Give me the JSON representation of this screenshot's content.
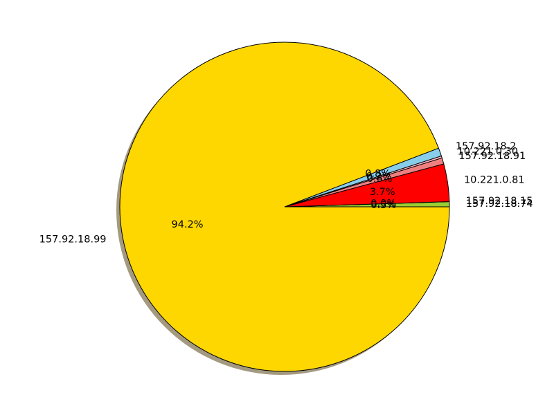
{
  "chart_data": {
    "type": "pie",
    "title": "",
    "shadow": true,
    "start_angle_deg": 0,
    "direction": "counterclockwise",
    "slices": [
      {
        "label": "157.92.18.74",
        "percent": 0.5,
        "percent_label": "0.5%",
        "color": "#9ACD32"
      },
      {
        "label": "157.92.18.15",
        "percent": 0.0,
        "percent_label": "0.0%",
        "color": "#6B8E23"
      },
      {
        "label": "10.221.0.81",
        "percent": 3.7,
        "percent_label": "3.7%",
        "color": "#FF0000"
      },
      {
        "label": "157.92.18.91",
        "percent": 0.6,
        "percent_label": "0.6%",
        "color": "#F08080"
      },
      {
        "label": "10.221.0.30",
        "percent": 0.2,
        "percent_label": "0.2%",
        "color": "#FFB6C1"
      },
      {
        "label": "157.92.18.2",
        "percent": 0.8,
        "percent_label": "0.8%",
        "color": "#87CEEB"
      },
      {
        "label": "157.92.18.99",
        "percent": 94.2,
        "percent_label": "94.2%",
        "color": "#FFD700"
      }
    ]
  }
}
